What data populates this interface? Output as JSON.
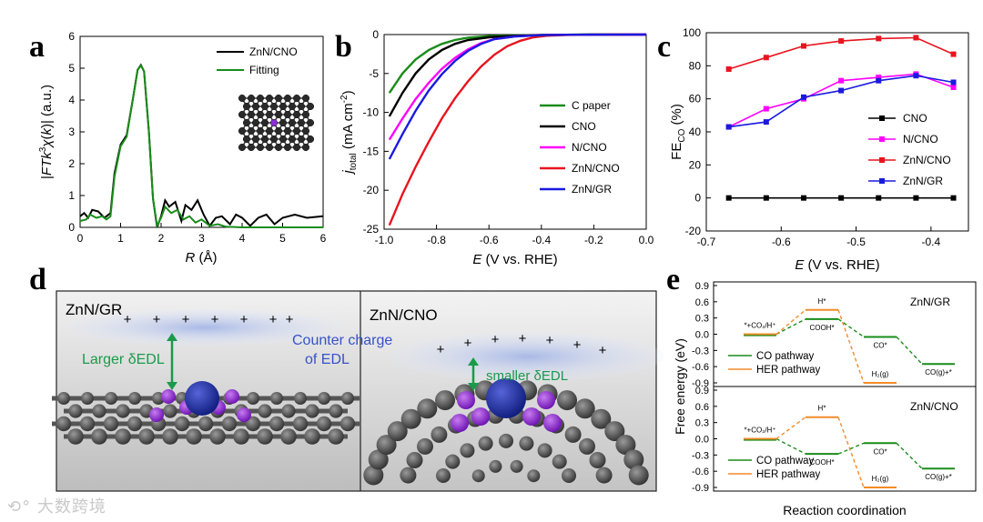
{
  "panels": {
    "a": {
      "label": "a"
    },
    "b": {
      "label": "b"
    },
    "c": {
      "label": "c"
    },
    "d": {
      "label": "d"
    },
    "e": {
      "label": "e"
    }
  },
  "chart_data": [
    {
      "panel": "a",
      "type": "line",
      "xlabel": "R (Å)",
      "ylabel": "|FTk³χ(k)| (a.u.)",
      "xlim": [
        0,
        6
      ],
      "ylim": [
        0,
        6
      ],
      "xticks": [
        "0",
        "1",
        "2",
        "3",
        "4",
        "5",
        "6"
      ],
      "yticks": [
        "0",
        "1",
        "2",
        "3",
        "4",
        "5",
        "6"
      ],
      "legend_position": "top-right",
      "series": [
        {
          "name": "ZnN/CNO",
          "color": "#000000",
          "points": [
            [
              0.0,
              0.35
            ],
            [
              0.1,
              0.45
            ],
            [
              0.2,
              0.3
            ],
            [
              0.3,
              0.55
            ],
            [
              0.45,
              0.5
            ],
            [
              0.6,
              0.3
            ],
            [
              0.75,
              0.45
            ],
            [
              0.85,
              1.7
            ],
            [
              1.0,
              2.6
            ],
            [
              1.15,
              2.9
            ],
            [
              1.3,
              4.0
            ],
            [
              1.42,
              4.95
            ],
            [
              1.5,
              5.1
            ],
            [
              1.58,
              4.9
            ],
            [
              1.7,
              3.0
            ],
            [
              1.8,
              0.9
            ],
            [
              1.9,
              0.0
            ],
            [
              2.0,
              0.35
            ],
            [
              2.1,
              0.85
            ],
            [
              2.2,
              0.65
            ],
            [
              2.35,
              0.8
            ],
            [
              2.5,
              0.2
            ],
            [
              2.6,
              0.7
            ],
            [
              2.75,
              0.55
            ],
            [
              2.9,
              0.85
            ],
            [
              3.05,
              0.4
            ],
            [
              3.2,
              0.05
            ],
            [
              3.35,
              0.3
            ],
            [
              3.5,
              0.35
            ],
            [
              3.7,
              0.1
            ],
            [
              3.85,
              0.4
            ],
            [
              4.0,
              0.3
            ],
            [
              4.2,
              0.05
            ],
            [
              4.4,
              0.3
            ],
            [
              4.6,
              0.4
            ],
            [
              4.8,
              0.1
            ],
            [
              5.0,
              0.3
            ],
            [
              5.3,
              0.4
            ],
            [
              5.6,
              0.3
            ],
            [
              6.0,
              0.35
            ]
          ]
        },
        {
          "name": "Fitting",
          "color": "#1a8c1a",
          "points": [
            [
              0.0,
              0.2
            ],
            [
              0.15,
              0.25
            ],
            [
              0.25,
              0.4
            ],
            [
              0.4,
              0.3
            ],
            [
              0.55,
              0.35
            ],
            [
              0.65,
              0.25
            ],
            [
              0.75,
              0.35
            ],
            [
              0.85,
              1.6
            ],
            [
              1.0,
              2.55
            ],
            [
              1.15,
              2.85
            ],
            [
              1.3,
              4.0
            ],
            [
              1.42,
              4.95
            ],
            [
              1.5,
              5.08
            ],
            [
              1.58,
              4.9
            ],
            [
              1.7,
              3.0
            ],
            [
              1.8,
              0.9
            ],
            [
              1.9,
              0.05
            ],
            [
              2.0,
              0.3
            ],
            [
              2.1,
              0.65
            ],
            [
              2.25,
              0.45
            ],
            [
              2.4,
              0.55
            ],
            [
              2.55,
              0.25
            ],
            [
              2.7,
              0.35
            ],
            [
              2.85,
              0.15
            ],
            [
              3.0,
              0.25
            ],
            [
              3.2,
              0.05
            ],
            [
              3.4,
              0.1
            ],
            [
              3.6,
              0.02
            ],
            [
              4.0,
              0.0
            ],
            [
              6.0,
              0.0
            ]
          ]
        }
      ]
    },
    {
      "panel": "b",
      "type": "line",
      "xlabel": "E (V vs. RHE)",
      "ylabel": "j_total (mA cm⁻²)",
      "xlim": [
        -1.0,
        0.0
      ],
      "ylim": [
        -25,
        0
      ],
      "xticks": [
        "-1.0",
        "-0.8",
        "-0.6",
        "-0.4",
        "-0.2",
        "0.0"
      ],
      "yticks": [
        "0",
        "-5",
        "-10",
        "-15",
        "-20",
        "-25"
      ],
      "legend_position": "bottom-right",
      "series": [
        {
          "name": "C paper",
          "color": "#1a8c1a",
          "points": [
            [
              -0.98,
              -7.5
            ],
            [
              -0.93,
              -5.0
            ],
            [
              -0.88,
              -3.2
            ],
            [
              -0.83,
              -2.0
            ],
            [
              -0.78,
              -1.2
            ],
            [
              -0.73,
              -0.7
            ],
            [
              -0.68,
              -0.4
            ],
            [
              -0.6,
              -0.2
            ],
            [
              -0.5,
              -0.1
            ],
            [
              -0.4,
              -0.05
            ],
            [
              -0.2,
              0
            ],
            [
              0.0,
              0
            ]
          ]
        },
        {
          "name": "CNO",
          "color": "#000000",
          "points": [
            [
              -0.98,
              -10.5
            ],
            [
              -0.93,
              -7.5
            ],
            [
              -0.88,
              -5.0
            ],
            [
              -0.83,
              -3.2
            ],
            [
              -0.78,
              -2.0
            ],
            [
              -0.73,
              -1.2
            ],
            [
              -0.68,
              -0.7
            ],
            [
              -0.6,
              -0.35
            ],
            [
              -0.5,
              -0.15
            ],
            [
              -0.4,
              -0.05
            ],
            [
              -0.2,
              0
            ],
            [
              0.0,
              0
            ]
          ]
        },
        {
          "name": "N/CNO",
          "color": "#ff00ff",
          "points": [
            [
              -0.98,
              -13.5
            ],
            [
              -0.93,
              -10.8
            ],
            [
              -0.88,
              -8.3
            ],
            [
              -0.83,
              -6.2
            ],
            [
              -0.78,
              -4.4
            ],
            [
              -0.73,
              -3.0
            ],
            [
              -0.68,
              -1.9
            ],
            [
              -0.63,
              -1.1
            ],
            [
              -0.58,
              -0.6
            ],
            [
              -0.5,
              -0.25
            ],
            [
              -0.4,
              -0.08
            ],
            [
              -0.3,
              -0.02
            ],
            [
              0.0,
              0
            ]
          ]
        },
        {
          "name": "ZnN/CNO",
          "color": "#e8141e",
          "points": [
            [
              -0.98,
              -24.5
            ],
            [
              -0.93,
              -20.5
            ],
            [
              -0.88,
              -17.0
            ],
            [
              -0.83,
              -13.8
            ],
            [
              -0.78,
              -10.8
            ],
            [
              -0.73,
              -8.2
            ],
            [
              -0.68,
              -6.0
            ],
            [
              -0.63,
              -4.1
            ],
            [
              -0.58,
              -2.6
            ],
            [
              -0.53,
              -1.5
            ],
            [
              -0.48,
              -0.8
            ],
            [
              -0.43,
              -0.35
            ],
            [
              -0.38,
              -0.15
            ],
            [
              -0.3,
              -0.05
            ],
            [
              0.0,
              0
            ]
          ]
        },
        {
          "name": "ZnN/GR",
          "color": "#1a1ae0",
          "points": [
            [
              -0.98,
              -16.0
            ],
            [
              -0.93,
              -12.8
            ],
            [
              -0.88,
              -9.8
            ],
            [
              -0.83,
              -7.2
            ],
            [
              -0.78,
              -5.1
            ],
            [
              -0.73,
              -3.4
            ],
            [
              -0.68,
              -2.1
            ],
            [
              -0.63,
              -1.2
            ],
            [
              -0.58,
              -0.6
            ],
            [
              -0.5,
              -0.25
            ],
            [
              -0.4,
              -0.08
            ],
            [
              -0.3,
              -0.02
            ],
            [
              0.0,
              0
            ]
          ]
        }
      ]
    },
    {
      "panel": "c",
      "type": "line",
      "xlabel": "E (V vs. RHE)",
      "ylabel": "FE_CO (%)",
      "xlim": [
        -0.7,
        -0.35
      ],
      "ylim": [
        -20,
        100
      ],
      "xticks": [
        "-0.7",
        "-0.6",
        "-0.5",
        "-0.4"
      ],
      "yticks": [
        "100",
        "80",
        "60",
        "40",
        "20",
        "0",
        "-20"
      ],
      "legend_position": "bottom-right",
      "x": [
        -0.67,
        -0.62,
        -0.57,
        -0.52,
        -0.47,
        -0.42,
        -0.37
      ],
      "series": [
        {
          "name": "CNO",
          "color": "#000000",
          "values": [
            0,
            0,
            0,
            0,
            0,
            0,
            0
          ]
        },
        {
          "name": "N/CNO",
          "color": "#ff00ff",
          "values": [
            43,
            54,
            60,
            71,
            73,
            75,
            67
          ]
        },
        {
          "name": "ZnN/CNO",
          "color": "#e8141e",
          "values": [
            78,
            85,
            92,
            95,
            96.5,
            97,
            87
          ]
        },
        {
          "name": "ZnN/GR",
          "color": "#1a1ae0",
          "values": [
            43,
            46,
            61,
            65,
            71,
            74,
            70
          ]
        }
      ]
    },
    {
      "panel": "e",
      "type": "line",
      "xlabel": "Reaction coordination",
      "ylabel": "Free energy (eV)",
      "ylim": [
        -0.9,
        0.9
      ],
      "yticks": [
        "0.9",
        "0.6",
        "0.3",
        "0.0",
        "-0.3",
        "-0.6",
        "-0.9"
      ],
      "subplots": [
        {
          "title": "ZnN/GR",
          "steps": [
            {
              "label": "*+CO₂/H⁺",
              "value": 0.0,
              "pathway": "both"
            },
            {
              "label": "COOH*",
              "value": 0.28,
              "pathway": "co"
            },
            {
              "label": "H*",
              "value": 0.45,
              "pathway": "her"
            },
            {
              "label": "CO*",
              "value": -0.05,
              "pathway": "co"
            },
            {
              "label": "H₂(g)",
              "value": -0.9,
              "pathway": "her"
            },
            {
              "label": "CO(g)+*",
              "value": -0.55,
              "pathway": "co"
            }
          ]
        },
        {
          "title": "ZnN/CNO",
          "steps": [
            {
              "label": "*+CO₂/H⁺",
              "value": 0.0,
              "pathway": "both"
            },
            {
              "label": "COOH*",
              "value": -0.28,
              "pathway": "co"
            },
            {
              "label": "H*",
              "value": 0.4,
              "pathway": "her"
            },
            {
              "label": "CO*",
              "value": -0.08,
              "pathway": "co"
            },
            {
              "label": "H₂(g)",
              "value": -0.9,
              "pathway": "her"
            },
            {
              "label": "CO(g)+*",
              "value": -0.55,
              "pathway": "co"
            }
          ]
        }
      ],
      "legend": [
        {
          "name": "CO pathway",
          "color": "#1a8c1a"
        },
        {
          "name": "HER pathway",
          "color": "#f28c28"
        }
      ]
    }
  ],
  "panel_d": {
    "left_title": "ZnN/GR",
    "right_title": "ZnN/CNO",
    "left_annotation": "Larger δEDL",
    "right_annotation": "smaller δEDL",
    "counter_label_line1": "Counter charge",
    "counter_label_line2": "of EDL",
    "charge_symbol": "+"
  },
  "watermark": "大数跨境"
}
